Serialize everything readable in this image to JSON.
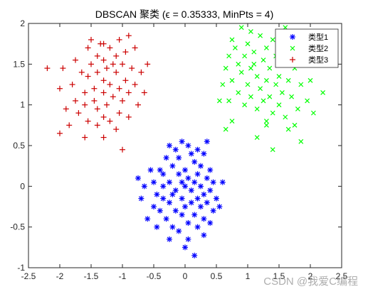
{
  "chart_data": {
    "type": "scatter",
    "title": "DBSCAN 聚类 (ϵ = 0.35333, MinPts = 4)",
    "xlabel": "",
    "ylabel": "",
    "xlim": [
      -2.5,
      2.5
    ],
    "ylim": [
      -1,
      2
    ],
    "xticks": [
      "-2.5",
      "-2",
      "-1.5",
      "-1",
      "-0.5",
      "0",
      "0.5",
      "1",
      "1.5",
      "2",
      "2.5"
    ],
    "yticks": [
      "-1",
      "-0.5",
      "0",
      "0.5",
      "1",
      "1.5",
      "2"
    ],
    "grid": false,
    "legend_position": "top-right",
    "series": [
      {
        "name": "类型1",
        "marker": "asterisk",
        "color": "#0000ff",
        "points": [
          [
            -0.05,
            0.55
          ],
          [
            0.05,
            0.5
          ],
          [
            0.35,
            0.55
          ],
          [
            0.2,
            0.45
          ],
          [
            -0.25,
            0.5
          ],
          [
            -0.15,
            0.45
          ],
          [
            0.1,
            0.4
          ],
          [
            0.3,
            0.4
          ],
          [
            -0.3,
            0.35
          ],
          [
            -0.1,
            0.35
          ],
          [
            0.15,
            0.3
          ],
          [
            -0.2,
            0.25
          ],
          [
            0.25,
            0.25
          ],
          [
            -0.4,
            0.2
          ],
          [
            0.4,
            0.2
          ],
          [
            0.0,
            0.2
          ],
          [
            -0.55,
            0.2
          ],
          [
            -0.35,
            0.15
          ],
          [
            0.2,
            0.15
          ],
          [
            -0.1,
            0.15
          ],
          [
            0.05,
            0.1
          ],
          [
            0.35,
            0.1
          ],
          [
            -0.5,
            0.05
          ],
          [
            -0.25,
            0.05
          ],
          [
            0.15,
            0.05
          ],
          [
            -0.05,
            0.05
          ],
          [
            0.45,
            0.05
          ],
          [
            -0.65,
            0.0
          ],
          [
            -0.35,
            0.0
          ],
          [
            0.25,
            0.0
          ],
          [
            0.0,
            0.0
          ],
          [
            -0.15,
            -0.05
          ],
          [
            0.1,
            -0.05
          ],
          [
            0.4,
            -0.05
          ],
          [
            -0.45,
            -0.1
          ],
          [
            -0.2,
            -0.1
          ],
          [
            0.3,
            -0.1
          ],
          [
            -0.05,
            -0.15
          ],
          [
            0.2,
            -0.15
          ],
          [
            -0.35,
            -0.15
          ],
          [
            0.5,
            -0.15
          ],
          [
            0.1,
            -0.2
          ],
          [
            -0.25,
            -0.2
          ],
          [
            0.35,
            -0.2
          ],
          [
            -0.5,
            -0.25
          ],
          [
            0.0,
            -0.25
          ],
          [
            0.25,
            -0.25
          ],
          [
            -0.15,
            -0.3
          ],
          [
            0.45,
            -0.3
          ],
          [
            -0.4,
            -0.3
          ],
          [
            0.15,
            -0.35
          ],
          [
            -0.05,
            -0.35
          ],
          [
            0.3,
            -0.4
          ],
          [
            -0.3,
            -0.4
          ],
          [
            0.05,
            -0.45
          ],
          [
            -0.2,
            -0.5
          ],
          [
            0.4,
            -0.45
          ],
          [
            0.2,
            -0.5
          ],
          [
            -0.1,
            -0.55
          ],
          [
            0.3,
            -0.6
          ],
          [
            -0.25,
            -0.65
          ],
          [
            0.05,
            -0.65
          ],
          [
            0.15,
            -0.85
          ],
          [
            -0.6,
            -0.4
          ],
          [
            -0.7,
            -0.15
          ],
          [
            0.55,
            -0.25
          ],
          [
            -0.75,
            0.1
          ],
          [
            0.6,
            0.05
          ],
          [
            -0.45,
            -0.5
          ],
          [
            0.0,
            -0.75
          ]
        ]
      },
      {
        "name": "类型2",
        "marker": "x",
        "color": "#00ff00",
        "points": [
          [
            0.9,
            1.95
          ],
          [
            1.05,
            1.9
          ],
          [
            0.75,
            1.8
          ],
          [
            1.2,
            1.85
          ],
          [
            1.4,
            1.8
          ],
          [
            1.0,
            1.75
          ],
          [
            0.8,
            1.7
          ],
          [
            1.3,
            1.7
          ],
          [
            1.55,
            1.75
          ],
          [
            1.1,
            1.65
          ],
          [
            0.7,
            1.6
          ],
          [
            0.95,
            1.6
          ],
          [
            1.45,
            1.6
          ],
          [
            1.25,
            1.55
          ],
          [
            0.85,
            1.5
          ],
          [
            1.6,
            1.5
          ],
          [
            1.05,
            1.45
          ],
          [
            0.65,
            1.45
          ],
          [
            1.35,
            1.45
          ],
          [
            1.75,
            1.45
          ],
          [
            0.9,
            1.4
          ],
          [
            1.15,
            1.35
          ],
          [
            1.5,
            1.35
          ],
          [
            0.75,
            1.3
          ],
          [
            1.3,
            1.3
          ],
          [
            1.65,
            1.3
          ],
          [
            1.0,
            1.25
          ],
          [
            1.45,
            1.25
          ],
          [
            0.6,
            1.25
          ],
          [
            1.85,
            1.25
          ],
          [
            1.2,
            1.2
          ],
          [
            0.85,
            1.15
          ],
          [
            1.55,
            1.15
          ],
          [
            1.35,
            1.1
          ],
          [
            1.05,
            1.1
          ],
          [
            1.7,
            1.1
          ],
          [
            0.7,
            1.05
          ],
          [
            1.25,
            1.05
          ],
          [
            1.95,
            1.05
          ],
          [
            1.5,
            1.0
          ],
          [
            0.95,
            1.0
          ],
          [
            1.8,
            0.95
          ],
          [
            1.15,
            0.95
          ],
          [
            1.4,
            0.9
          ],
          [
            2.05,
            0.9
          ],
          [
            1.6,
            0.85
          ],
          [
            1.3,
            0.8
          ],
          [
            1.75,
            0.75
          ],
          [
            0.75,
            0.8
          ],
          [
            1.3,
            0.75
          ],
          [
            1.65,
            0.7
          ],
          [
            1.15,
            0.6
          ],
          [
            1.85,
            0.55
          ],
          [
            0.65,
            0.7
          ],
          [
            1.4,
            0.45
          ],
          [
            2.2,
            1.15
          ],
          [
            2.0,
            1.3
          ],
          [
            0.55,
            1.05
          ],
          [
            1.1,
            1.5
          ],
          [
            1.6,
            1.95
          ]
        ]
      },
      {
        "name": "类型3",
        "marker": "plus",
        "color": "#cc0000",
        "points": [
          [
            -0.9,
            1.85
          ],
          [
            -1.05,
            1.8
          ],
          [
            -1.3,
            1.75
          ],
          [
            -1.55,
            1.7
          ],
          [
            -1.2,
            1.7
          ],
          [
            -0.95,
            1.65
          ],
          [
            -1.4,
            1.6
          ],
          [
            -1.1,
            1.6
          ],
          [
            -1.75,
            1.55
          ],
          [
            -0.6,
            1.5
          ],
          [
            -1.3,
            1.55
          ],
          [
            -1.5,
            1.5
          ],
          [
            -1.0,
            1.5
          ],
          [
            -2.2,
            1.45
          ],
          [
            -1.25,
            1.45
          ],
          [
            -0.85,
            1.45
          ],
          [
            -1.65,
            1.4
          ],
          [
            -1.4,
            1.4
          ],
          [
            -1.1,
            1.4
          ],
          [
            -0.7,
            1.4
          ],
          [
            -1.55,
            1.35
          ],
          [
            -1.3,
            1.3
          ],
          [
            -0.95,
            1.3
          ],
          [
            -1.8,
            1.25
          ],
          [
            -1.2,
            1.25
          ],
          [
            -0.8,
            1.25
          ],
          [
            -1.45,
            1.2
          ],
          [
            -1.05,
            1.2
          ],
          [
            -2.0,
            1.2
          ],
          [
            -1.6,
            1.15
          ],
          [
            -1.3,
            1.15
          ],
          [
            -0.9,
            1.15
          ],
          [
            -1.15,
            1.1
          ],
          [
            -1.75,
            1.05
          ],
          [
            -1.45,
            1.05
          ],
          [
            -1.0,
            1.05
          ],
          [
            -0.75,
            1.0
          ],
          [
            -1.6,
            1.0
          ],
          [
            -1.25,
            1.0
          ],
          [
            -1.9,
            0.95
          ],
          [
            -1.4,
            0.95
          ],
          [
            -1.05,
            0.9
          ],
          [
            -1.7,
            0.9
          ],
          [
            -1.3,
            0.85
          ],
          [
            -0.9,
            0.85
          ],
          [
            -1.55,
            0.8
          ],
          [
            -1.2,
            0.8
          ],
          [
            -1.85,
            0.75
          ],
          [
            -1.4,
            0.75
          ],
          [
            -1.1,
            0.7
          ],
          [
            -2.0,
            0.65
          ],
          [
            -1.3,
            0.6
          ],
          [
            -1.6,
            0.6
          ],
          [
            -1.0,
            0.45
          ],
          [
            -1.35,
            1.75
          ],
          [
            -0.8,
            1.7
          ],
          [
            -1.5,
            1.8
          ],
          [
            -1.15,
            1.5
          ],
          [
            -0.65,
            1.15
          ],
          [
            -1.95,
            1.45
          ]
        ]
      }
    ]
  },
  "watermark": "CSDN @我爱C编程",
  "colors": {
    "axis": "#262626",
    "background": "#ffffff"
  }
}
